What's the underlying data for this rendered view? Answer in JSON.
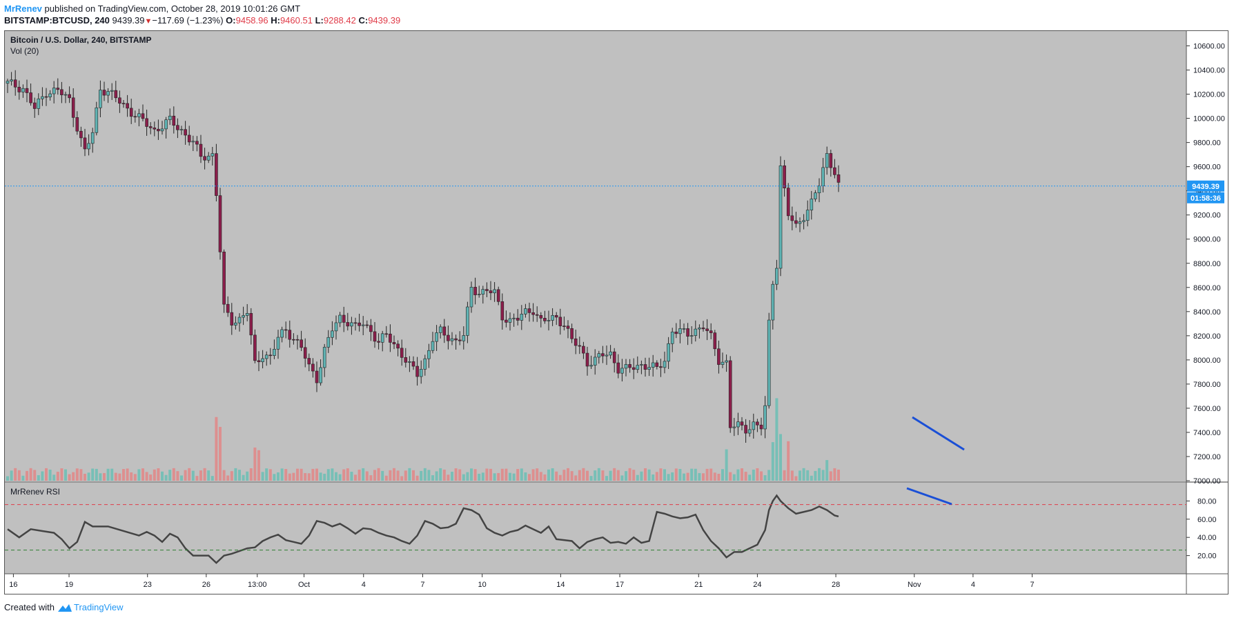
{
  "header": {
    "author": "MrRenev",
    "published": " published on TradingView.com, October 28, 2019 10:01:26 GMT",
    "symbol": "BITSTAMP:BTCUSD, 240",
    "last": "9439.39",
    "change": "−117.69 (−1.23%)",
    "o_label": "O:",
    "o": "9458.96",
    "h_label": "H:",
    "h": "9460.51",
    "l_label": "L:",
    "l": "9288.42",
    "c_label": "C:",
    "c": "9439.39"
  },
  "chart": {
    "title": "Bitcoin / U.S. Dollar, 240, BITSTAMP",
    "vol_label": "Vol (20)",
    "rsi_label": "MrRenev RSI",
    "price_tag": "9439.39",
    "countdown": "01:58:36",
    "colors": {
      "background": "#c0c0c0",
      "up": "#5fb3b3",
      "down": "#8b1e4b",
      "vol_up": "#6fbfb5",
      "vol_down": "#e08a8a",
      "rsi": "#444444",
      "trend": "#1a4fd6",
      "price_line": "#2196f3"
    }
  },
  "chart_data": [
    {
      "type": "candlestick",
      "title": "Bitcoin / U.S. Dollar, 240, BITSTAMP",
      "xlabel": "",
      "ylabel": "",
      "ylim": [
        7000,
        10700
      ],
      "y_ticks": [
        "7000.00",
        "7200.00",
        "7400.00",
        "7600.00",
        "7800.00",
        "8000.00",
        "8200.00",
        "8400.00",
        "8600.00",
        "8800.00",
        "9000.00",
        "9200.00",
        "9400.00",
        "9600.00",
        "9800.00",
        "10000.00",
        "10200.00",
        "10400.00",
        "10600.00"
      ],
      "x_ticks": [
        "16",
        "19",
        "23",
        "26",
        "13:00",
        "Oct",
        "4",
        "7",
        "10",
        "14",
        "17",
        "21",
        "24",
        "28",
        "Nov",
        "4",
        "7"
      ],
      "last_price": 9439.39,
      "close_path": [
        [
          0,
          10290
        ],
        [
          4,
          10250
        ],
        [
          7,
          10080
        ],
        [
          10,
          10220
        ],
        [
          13,
          10230
        ],
        [
          16,
          10150
        ],
        [
          19,
          9820
        ],
        [
          20,
          9720
        ],
        [
          22,
          9880
        ],
        [
          24,
          10250
        ],
        [
          26,
          10220
        ],
        [
          30,
          10110
        ],
        [
          34,
          10000
        ],
        [
          38,
          9900
        ],
        [
          42,
          9980
        ],
        [
          45,
          9900
        ],
        [
          48,
          9800
        ],
        [
          50,
          9680
        ],
        [
          53,
          9700
        ],
        [
          54,
          9380
        ],
        [
          56,
          8420
        ],
        [
          58,
          8320
        ],
        [
          60,
          8340
        ],
        [
          62,
          8400
        ],
        [
          64,
          7960
        ],
        [
          66,
          8050
        ],
        [
          68,
          8020
        ],
        [
          70,
          8180
        ],
        [
          72,
          8250
        ],
        [
          74,
          8180
        ],
        [
          76,
          8100
        ],
        [
          78,
          7940
        ],
        [
          80,
          7850
        ],
        [
          82,
          8080
        ],
        [
          84,
          8250
        ],
        [
          86,
          8350
        ],
        [
          88,
          8320
        ],
        [
          90,
          8270
        ],
        [
          92,
          8300
        ],
        [
          94,
          8240
        ],
        [
          96,
          8150
        ],
        [
          98,
          8200
        ],
        [
          100,
          8130
        ],
        [
          102,
          8050
        ],
        [
          104,
          7950
        ],
        [
          106,
          7880
        ],
        [
          108,
          8000
        ],
        [
          110,
          8180
        ],
        [
          112,
          8230
        ],
        [
          114,
          8190
        ],
        [
          116,
          8160
        ],
        [
          118,
          8200
        ],
        [
          120,
          8590
        ],
        [
          122,
          8560
        ],
        [
          124,
          8580
        ],
        [
          126,
          8550
        ],
        [
          128,
          8360
        ],
        [
          130,
          8330
        ],
        [
          132,
          8340
        ],
        [
          134,
          8390
        ],
        [
          136,
          8420
        ],
        [
          138,
          8320
        ],
        [
          140,
          8330
        ],
        [
          142,
          8350
        ],
        [
          144,
          8300
        ],
        [
          146,
          8160
        ],
        [
          148,
          8100
        ],
        [
          150,
          7980
        ],
        [
          152,
          8000
        ],
        [
          154,
          8040
        ],
        [
          156,
          8050
        ],
        [
          158,
          7930
        ],
        [
          160,
          7920
        ],
        [
          162,
          7940
        ],
        [
          164,
          7960
        ],
        [
          166,
          7950
        ],
        [
          168,
          7920
        ],
        [
          170,
          8000
        ],
        [
          172,
          8250
        ],
        [
          174,
          8230
        ],
        [
          176,
          8210
        ],
        [
          178,
          8250
        ],
        [
          180,
          8280
        ],
        [
          182,
          8180
        ],
        [
          184,
          8000
        ],
        [
          186,
          7980
        ],
        [
          187,
          7450
        ],
        [
          189,
          7450
        ],
        [
          191,
          7430
        ],
        [
          193,
          7470
        ],
        [
          195,
          7440
        ],
        [
          196,
          7600
        ],
        [
          197,
          8300
        ],
        [
          198,
          8650
        ],
        [
          199,
          8800
        ],
        [
          200,
          9600
        ],
        [
          202,
          9200
        ],
        [
          204,
          9100
        ],
        [
          206,
          9200
        ],
        [
          208,
          9300
        ],
        [
          210,
          9450
        ],
        [
          212,
          9700
        ],
        [
          214,
          9560
        ],
        [
          215,
          9440
        ]
      ],
      "volume_markers": [
        [
          54,
          0.71
        ],
        [
          55,
          0.6
        ],
        [
          64,
          0.37
        ],
        [
          65,
          0.34
        ],
        [
          186,
          0.35
        ],
        [
          198,
          0.43
        ],
        [
          199,
          0.92
        ],
        [
          200,
          0.52
        ],
        [
          202,
          0.44
        ],
        [
          212,
          0.23
        ]
      ],
      "rsi": {
        "name": "MrRenev RSI",
        "ylim": [
          0,
          100
        ],
        "y_ticks": [
          "20.00",
          "40.00",
          "60.00",
          "80.00"
        ],
        "upper": 76,
        "lower": 26,
        "path": [
          [
            0,
            49
          ],
          [
            3,
            40
          ],
          [
            6,
            49
          ],
          [
            9,
            47
          ],
          [
            12,
            45
          ],
          [
            14,
            38
          ],
          [
            16,
            28
          ],
          [
            18,
            35
          ],
          [
            20,
            57
          ],
          [
            22,
            52
          ],
          [
            26,
            52
          ],
          [
            30,
            47
          ],
          [
            34,
            42
          ],
          [
            36,
            46
          ],
          [
            38,
            42
          ],
          [
            40,
            35
          ],
          [
            42,
            44
          ],
          [
            44,
            40
          ],
          [
            46,
            28
          ],
          [
            48,
            20
          ],
          [
            52,
            20
          ],
          [
            54,
            12
          ],
          [
            56,
            20
          ],
          [
            58,
            22
          ],
          [
            62,
            28
          ],
          [
            64,
            29
          ],
          [
            66,
            36
          ],
          [
            68,
            40
          ],
          [
            70,
            43
          ],
          [
            72,
            37
          ],
          [
            74,
            35
          ],
          [
            76,
            33
          ],
          [
            78,
            42
          ],
          [
            80,
            58
          ],
          [
            82,
            56
          ],
          [
            84,
            52
          ],
          [
            86,
            55
          ],
          [
            88,
            50
          ],
          [
            90,
            44
          ],
          [
            92,
            50
          ],
          [
            94,
            49
          ],
          [
            96,
            45
          ],
          [
            98,
            42
          ],
          [
            100,
            40
          ],
          [
            102,
            36
          ],
          [
            104,
            33
          ],
          [
            106,
            42
          ],
          [
            108,
            58
          ],
          [
            110,
            55
          ],
          [
            112,
            50
          ],
          [
            114,
            51
          ],
          [
            116,
            55
          ],
          [
            118,
            72
          ],
          [
            120,
            70
          ],
          [
            122,
            65
          ],
          [
            124,
            50
          ],
          [
            126,
            45
          ],
          [
            128,
            42
          ],
          [
            130,
            46
          ],
          [
            132,
            48
          ],
          [
            134,
            53
          ],
          [
            136,
            49
          ],
          [
            138,
            45
          ],
          [
            140,
            52
          ],
          [
            142,
            38
          ],
          [
            144,
            37
          ],
          [
            146,
            36
          ],
          [
            148,
            28
          ],
          [
            150,
            35
          ],
          [
            152,
            38
          ],
          [
            154,
            40
          ],
          [
            156,
            34
          ],
          [
            158,
            35
          ],
          [
            160,
            33
          ],
          [
            162,
            40
          ],
          [
            164,
            34
          ],
          [
            166,
            36
          ],
          [
            168,
            68
          ],
          [
            170,
            66
          ],
          [
            172,
            63
          ],
          [
            174,
            61
          ],
          [
            176,
            62
          ],
          [
            178,
            65
          ],
          [
            180,
            48
          ],
          [
            182,
            36
          ],
          [
            184,
            28
          ],
          [
            186,
            18
          ],
          [
            188,
            24
          ],
          [
            190,
            24
          ],
          [
            192,
            28
          ],
          [
            194,
            32
          ],
          [
            196,
            48
          ],
          [
            197,
            70
          ],
          [
            198,
            80
          ],
          [
            199,
            86
          ],
          [
            200,
            80
          ],
          [
            202,
            72
          ],
          [
            204,
            66
          ],
          [
            206,
            68
          ],
          [
            208,
            70
          ],
          [
            210,
            74
          ],
          [
            212,
            70
          ],
          [
            214,
            64
          ],
          [
            215,
            63
          ]
        ]
      }
    }
  ]
}
